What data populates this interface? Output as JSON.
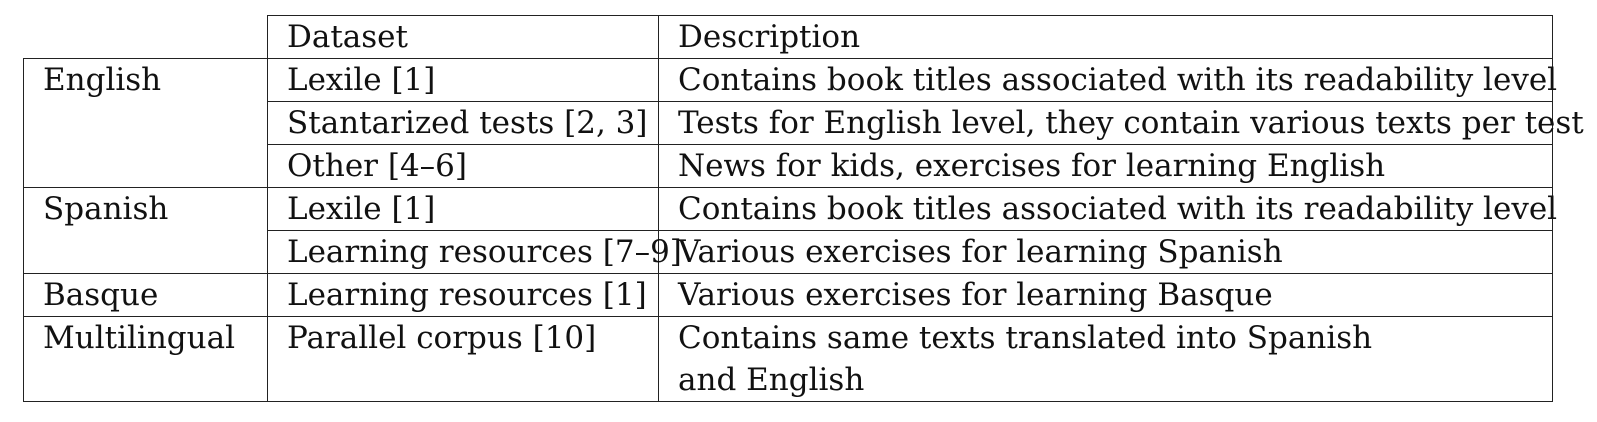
{
  "table": {
    "headers": {
      "dataset": "Dataset",
      "description": "Description"
    },
    "groups": [
      {
        "language": "English",
        "rows": [
          {
            "dataset": "Lexile [1]",
            "description": "Contains book titles associated with its readability level"
          },
          {
            "dataset": "Stantarized tests [2, 3]",
            "description": "Tests for English level, they contain various texts per test"
          },
          {
            "dataset": "Other [4–6]",
            "description": "News for kids, exercises for learning English"
          }
        ]
      },
      {
        "language": "Spanish",
        "rows": [
          {
            "dataset": "Lexile [1]",
            "description": "Contains book titles associated with its readability level"
          },
          {
            "dataset": "Learning resources [7–9]",
            "description": "Various exercises for learning Spanish"
          }
        ]
      },
      {
        "language": "Basque",
        "rows": [
          {
            "dataset": "Learning resources [1]",
            "description": "Various exercises for learning Basque"
          }
        ]
      },
      {
        "language": "Multilingual",
        "rows": [
          {
            "dataset": "Parallel corpus [10]",
            "description_line1": "Contains same texts translated into Spanish",
            "description_line2": "and English"
          }
        ]
      }
    ]
  }
}
